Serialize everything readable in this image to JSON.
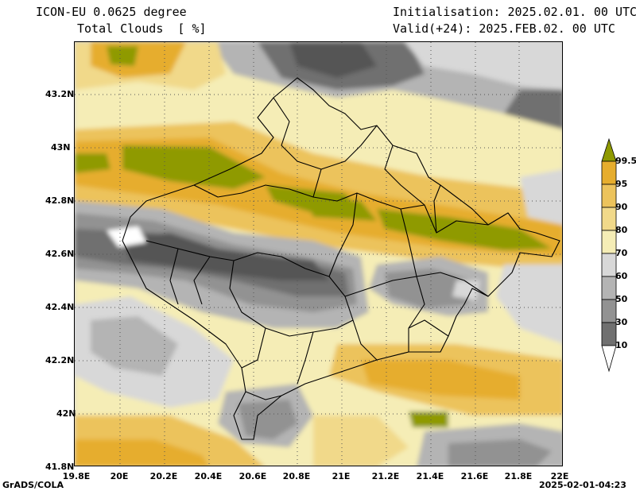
{
  "header": {
    "model": "ICON-EU 0.0625 degree",
    "variable": "Total Clouds  [ %]",
    "initialisation": "Initialisation: 2025.02.01. 00 UTC",
    "valid": "Valid(+24): 2025.FEB.02. 00 UTC"
  },
  "axes": {
    "x_ticks": [
      "19.8E",
      "20E",
      "20.2E",
      "20.4E",
      "20.6E",
      "20.8E",
      "21E",
      "21.2E",
      "21.4E",
      "21.6E",
      "21.8E",
      "22E"
    ],
    "y_ticks": [
      "43.2N",
      "43N",
      "42.8N",
      "42.6N",
      "42.4N",
      "42.2N",
      "42N",
      "41.8N"
    ]
  },
  "colorbar": {
    "levels": [
      "99.5",
      "95",
      "90",
      "80",
      "70",
      "60",
      "50",
      "30",
      "10"
    ],
    "colors": [
      "#8f9a00",
      "#e6ad2e",
      "#ecc35c",
      "#f1d98a",
      "#f5edb6",
      "#d8d8d8",
      "#b4b4b4",
      "#929292",
      "#707070",
      "#545454",
      "#ffffff"
    ]
  },
  "footer": {
    "left": "GrADS/COLA",
    "right": "2025-02-01-04:23"
  },
  "map": {
    "lon_range": [
      19.8,
      22.0
    ],
    "lat_range": [
      41.8,
      43.4
    ],
    "field": "Total cloud cover (%)"
  }
}
